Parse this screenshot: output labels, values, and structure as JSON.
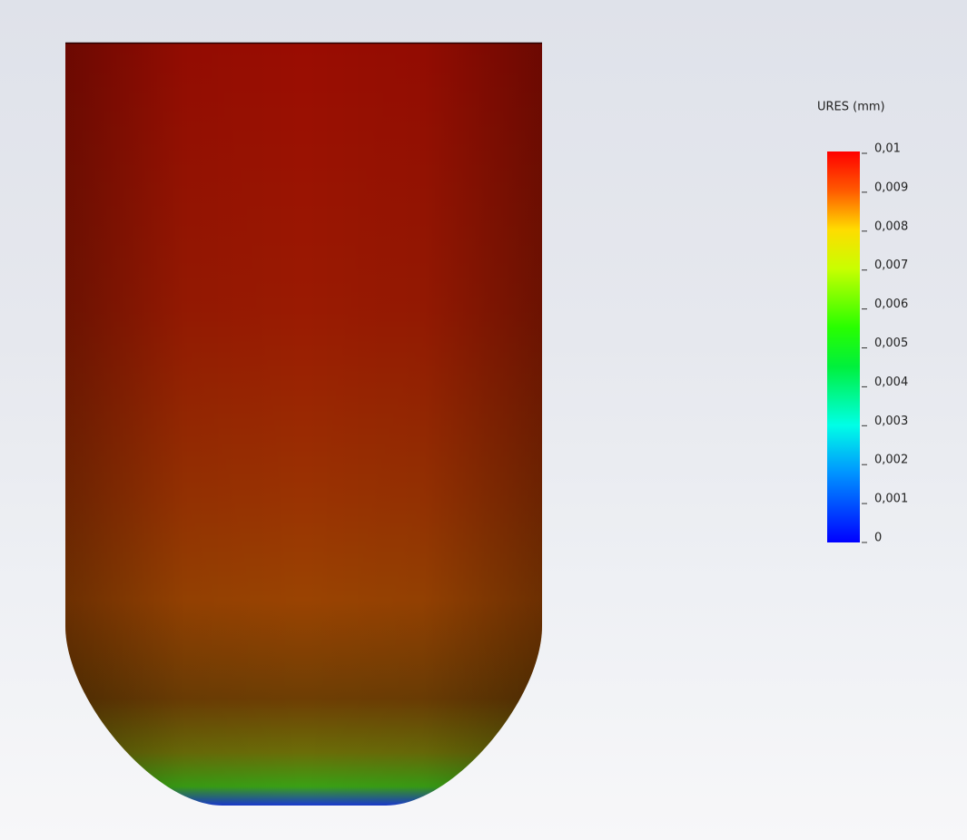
{
  "legend": {
    "title": "URES (mm)",
    "labels": [
      "0,01",
      "0,009",
      "0,008",
      "0,007",
      "0,006",
      "0,005",
      "0,004",
      "0,003",
      "0,002",
      "0,001",
      "0"
    ]
  }
}
